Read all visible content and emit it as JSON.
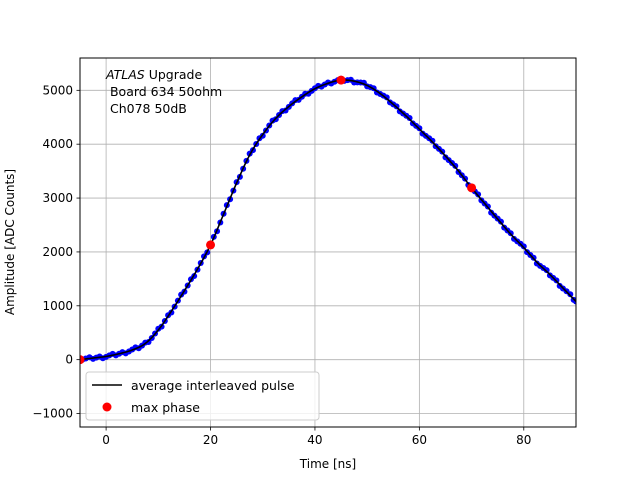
{
  "chart_data": {
    "type": "scatter",
    "xlabel": "Time [ns]",
    "ylabel": "Amplitude [ADC Counts]",
    "xlim": [
      -5,
      90
    ],
    "ylim": [
      -1250,
      5600
    ],
    "x_ticks": [
      0,
      20,
      40,
      60,
      80
    ],
    "x_tick_labels": [
      "0",
      "20",
      "40",
      "60",
      "80"
    ],
    "y_ticks": [
      -1000,
      0,
      1000,
      2000,
      3000,
      4000,
      5000
    ],
    "y_tick_labels": [
      "−1000",
      "0",
      "1000",
      "2000",
      "3000",
      "4000",
      "5000"
    ],
    "grid": true,
    "annotation": {
      "line1_italic": "ATLAS",
      "line1_rest": " Upgrade",
      "line2": " Board 634 50ohm",
      "line3": " Ch078 50dB"
    },
    "legend": {
      "placement": "lower-left",
      "entries": [
        {
          "label": "average interleaved pulse",
          "style": "line",
          "color": "#000000"
        },
        {
          "label": "max phase",
          "style": "marker",
          "color": "#ff0000"
        }
      ]
    },
    "series": [
      {
        "role": "samples",
        "color": "#0000ff",
        "x": [
          -5,
          -2.5,
          0,
          2.5,
          5,
          7.5,
          10,
          12.5,
          15,
          17.5,
          20,
          22.5,
          25,
          27.5,
          30,
          32.5,
          35,
          37.5,
          40,
          42.5,
          45,
          47.5,
          50,
          52.5,
          55,
          57.5,
          60,
          62.5,
          65,
          67.5,
          70,
          72.5,
          75,
          77.5,
          80,
          82.5,
          85,
          87.5,
          90
        ],
        "y": [
          0,
          30,
          60,
          110,
          180,
          300,
          550,
          900,
          1280,
          1680,
          2130,
          2700,
          3280,
          3800,
          4180,
          4480,
          4700,
          4880,
          5030,
          5130,
          5190,
          5170,
          5090,
          4940,
          4740,
          4520,
          4280,
          4040,
          3780,
          3500,
          3190,
          2900,
          2610,
          2330,
          2080,
          1810,
          1580,
          1330,
          1080
        ]
      },
      {
        "role": "average-line",
        "color": "#000000",
        "x": [
          -5,
          -2.5,
          0,
          2.5,
          5,
          7.5,
          10,
          12.5,
          15,
          17.5,
          20,
          22.5,
          25,
          27.5,
          30,
          32.5,
          35,
          37.5,
          40,
          42.5,
          45,
          47.5,
          50,
          52.5,
          55,
          57.5,
          60,
          62.5,
          65,
          67.5,
          70,
          72.5,
          75,
          77.5,
          80,
          82.5,
          85,
          87.5,
          90
        ],
        "y": [
          0,
          30,
          60,
          110,
          180,
          300,
          550,
          900,
          1280,
          1680,
          2130,
          2700,
          3280,
          3800,
          4180,
          4480,
          4700,
          4880,
          5030,
          5130,
          5190,
          5170,
          5090,
          4940,
          4740,
          4520,
          4280,
          4040,
          3780,
          3500,
          3190,
          2900,
          2610,
          2330,
          2080,
          1810,
          1580,
          1330,
          1080
        ]
      },
      {
        "role": "max-phase",
        "color": "#ff0000",
        "x": [
          -5,
          20,
          45,
          70
        ],
        "y": [
          0,
          2130,
          5190,
          3190
        ]
      }
    ]
  }
}
